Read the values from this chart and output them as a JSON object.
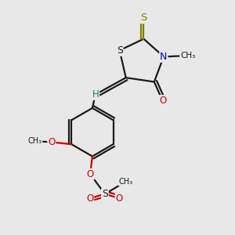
{
  "bg_color": "#e8e8e8",
  "line_color": "#1a1a1a",
  "S_color": "#808000",
  "N_color": "#0000cc",
  "O_color": "#cc0000",
  "H_color": "#008080",
  "lw": 1.6,
  "fs": 8.0,
  "xlim": [
    -0.05,
    1.0
  ],
  "ylim": [
    -0.05,
    1.05
  ]
}
